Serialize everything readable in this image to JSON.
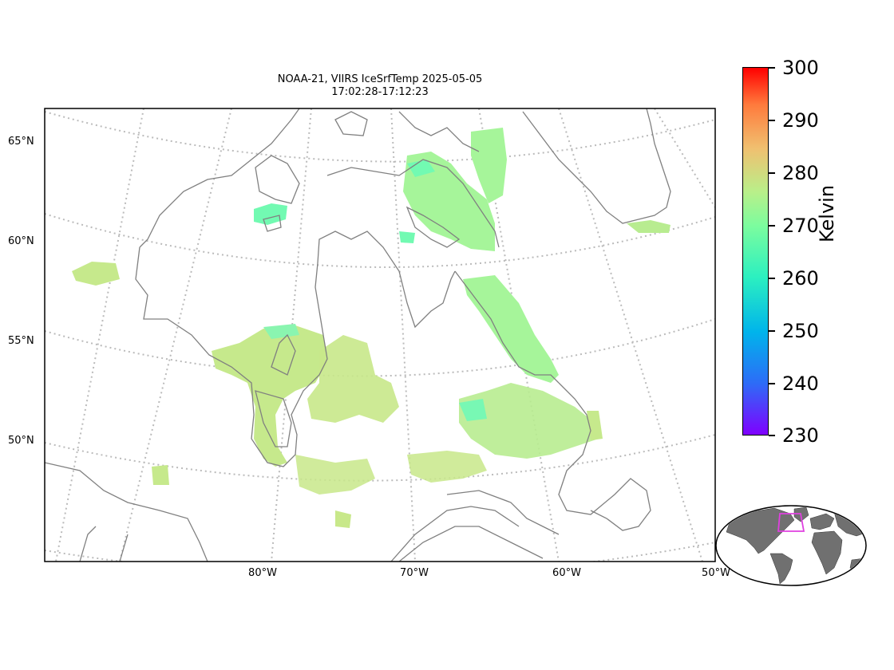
{
  "title": {
    "line1": "NOAA-21, VIIRS IceSrfTemp 2025-05-05",
    "line2": "17:02:28-17:12:23"
  },
  "lat_labels": [
    "65°N",
    "60°N",
    "55°N",
    "50°N"
  ],
  "lon_labels": [
    "80°W",
    "70°W",
    "60°W",
    "50°W"
  ],
  "colorbar": {
    "label": "Kelvin",
    "ticks": [
      "300",
      "290",
      "280",
      "270",
      "260",
      "250",
      "240",
      "230"
    ],
    "range": [
      230,
      300
    ],
    "colormap": "rainbow"
  },
  "colors": {
    "coastline": "#808080",
    "graticule": "#bbbbbb",
    "inset_land": "#707070",
    "inset_box": "#e040e0",
    "data_green": "#a6f59a",
    "data_yellowgreen": "#c8e88a",
    "data_teal": "#72fab2"
  },
  "inset": {
    "description_icon": "world-inset-map"
  }
}
